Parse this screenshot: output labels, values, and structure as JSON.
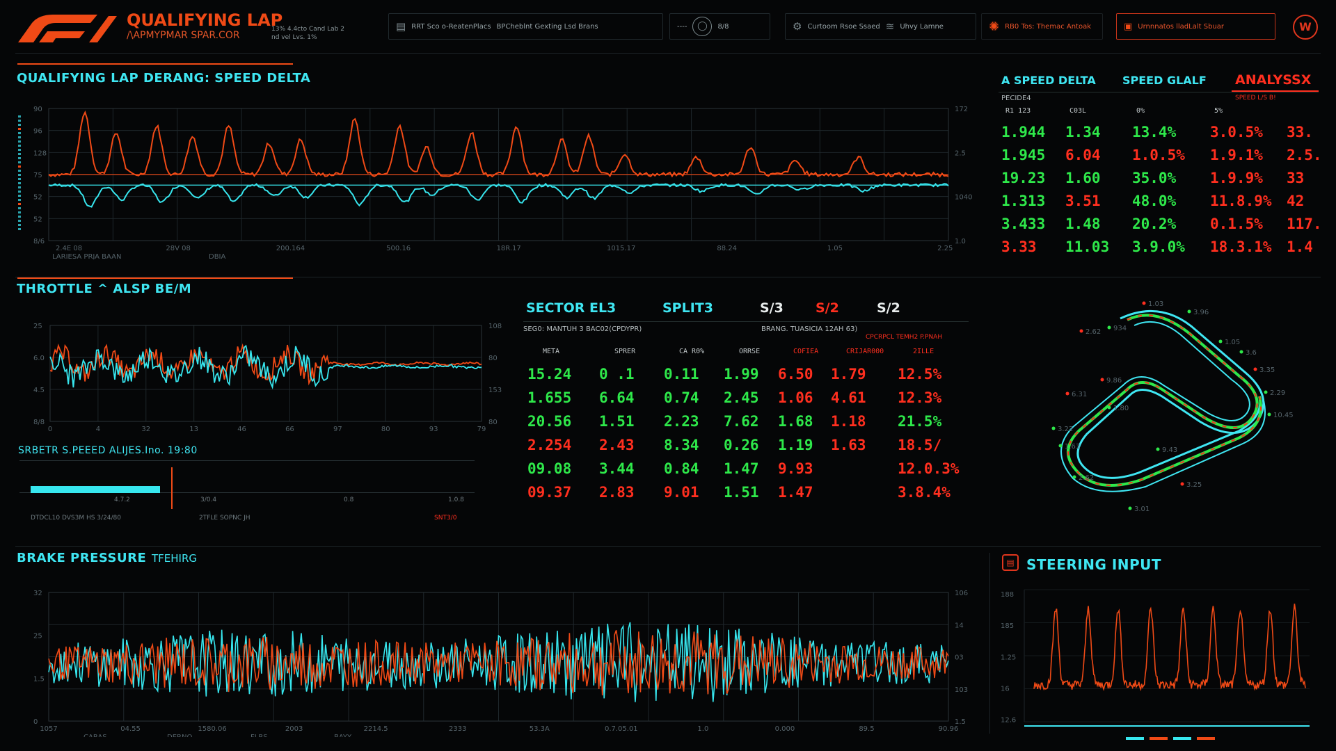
{
  "header": {
    "brand_title": "QUALIFYING LAP",
    "brand_subtitle": "/\\APMYPMAR SPAR.COR",
    "brand_small": "13% 4.4cto Cand Lab 2",
    "brand_small2": "nd vel Lvs. 1%",
    "boxes": [
      {
        "icon": "doc-icon",
        "label": "RRT Sco o-ReatenPlacs",
        "label2": "BPCheblnt Gexting Lsd Brans"
      },
      {
        "icon": "user-icon",
        "label": "----",
        "label2": "8/8"
      },
      {
        "icon": "gear-icon",
        "label": "Curtoom Rsoe Ssaed",
        "label2": "Uhvy Lamne"
      },
      {
        "icon": "alert-icon",
        "label": "RB0 Tos: Themac Antoak"
      },
      {
        "icon": "warning-icon",
        "label": "Urnnnatos lladLalt Sbuar"
      }
    ]
  },
  "speed_delta_panel": {
    "title": "QUALIFYING LAP DERANG: SPEED DELTA",
    "y_left": [
      "90",
      "96",
      "128",
      "75",
      "52",
      "52",
      "8/6"
    ],
    "y_right": [
      "172",
      "2.5",
      "1040",
      "1.0"
    ],
    "x_ticks": [
      "2.4E 08",
      "28V 08",
      "200.164",
      "500.16",
      "18R.17",
      "1015.17",
      "88.24",
      "1.05",
      "2.25"
    ],
    "footer_labels": [
      "LARIESA PRJA BAAN",
      "DBIA"
    ],
    "series": {
      "a": "orange",
      "b": "cyan"
    }
  },
  "analysis_table": {
    "headers": [
      "A SPEED DELTA",
      "SPEED GLALF",
      "ANALYSSX"
    ],
    "subheader": "PECIDE4",
    "subheader_right": "SPEED L/S B!",
    "colheads": [
      "R1 123",
      "C03L",
      "0%",
      "5%"
    ],
    "rows": [
      {
        "c": [
          "1.944",
          "1.34",
          "13.4%",
          "3.0.5%",
          "33."
        ],
        "k": [
          "g",
          "g",
          "g",
          "r",
          "r"
        ]
      },
      {
        "c": [
          "1.945",
          "6.04",
          "1.0.5%",
          "1.9.1%",
          "2.5."
        ],
        "k": [
          "g",
          "r",
          "r",
          "r",
          "r"
        ]
      },
      {
        "c": [
          "19.23",
          "1.60",
          "35.0%",
          "1.9.9%",
          "33"
        ],
        "k": [
          "g",
          "g",
          "g",
          "r",
          "r"
        ]
      },
      {
        "c": [
          "1.313",
          "3.51",
          "48.0%",
          "11.8.9%",
          "42"
        ],
        "k": [
          "g",
          "r",
          "g",
          "r",
          "r"
        ]
      },
      {
        "c": [
          "3.433",
          "1.48",
          "20.2%",
          "0.1.5%",
          "117."
        ],
        "k": [
          "g",
          "g",
          "g",
          "r",
          "r"
        ]
      },
      {
        "c": [
          "3.33",
          "11.03",
          "3.9.0%",
          "18.3.1%",
          "1.4"
        ],
        "k": [
          "r",
          "g",
          "g",
          "r",
          "r"
        ]
      }
    ]
  },
  "throttle_panel": {
    "title": "THROTTLE ^ ALSP BE/M",
    "y_left": [
      "25",
      "6.0",
      "4.5",
      "8/8"
    ],
    "y_right": [
      "108",
      "80",
      "153",
      "80"
    ],
    "x_ticks": [
      "0",
      "4",
      "32",
      "13",
      "46",
      "66",
      "97",
      "80",
      "93",
      "79"
    ]
  },
  "sector_speed": {
    "title": "SRBETR S.PEEED ALIJES.Ino. 19:80",
    "labels": [
      "4.7.2",
      "3/0.4",
      "0.8",
      "1.0.8"
    ],
    "footer": [
      "DTDCL10 DVS3M HS 3/24/80",
      "2TFLE SOPNC JH",
      "SNT3/0 "
    ],
    "bar_value": 0.3
  },
  "sector_table": {
    "headers": [
      "SECTOR EL3",
      "SPLIT3",
      "S/3",
      "S/2",
      "S/2"
    ],
    "header_kinds": [
      "c",
      "c",
      "w",
      "r",
      "w"
    ],
    "sub_left": "SEG0: MANTUH 3 BAC02(CPDYPR)",
    "sub_mid": "BRANG. TUASICIA 12AH 63)",
    "sub_right": "CPCRPCL TEMH2 P.PNAH",
    "colheads": [
      "META",
      "SPRER",
      "CA R0%",
      "ORRSE",
      "COFIEA",
      "CRIJAR000",
      "2ILLE"
    ],
    "rows": [
      {
        "c": [
          "15.24",
          "0 .1",
          "0.11",
          "1.99",
          "6.50",
          "1.79",
          "12.5%"
        ],
        "k": [
          "g",
          "g",
          "g",
          "g",
          "r",
          "r",
          "r"
        ]
      },
      {
        "c": [
          "1.655",
          "6.64",
          "0.74",
          "2.45",
          "1.06",
          "4.61",
          "12.3%"
        ],
        "k": [
          "g",
          "g",
          "g",
          "g",
          "r",
          "r",
          "r"
        ]
      },
      {
        "c": [
          "20.56",
          "1.51",
          "2.23",
          "7.62",
          "1.68",
          "1.18",
          "21.5%"
        ],
        "k": [
          "g",
          "g",
          "g",
          "g",
          "g",
          "r",
          "g"
        ]
      },
      {
        "c": [
          "2.254",
          "2.43",
          "8.34",
          "0.26",
          "1.19",
          "1.63",
          "18.5/"
        ],
        "k": [
          "r",
          "r",
          "g",
          "g",
          "g",
          "r",
          "r"
        ]
      },
      {
        "c": [
          "09.08",
          "3.44",
          "0.84",
          "1.47",
          "9.93",
          "",
          "12.0.3%"
        ],
        "k": [
          "g",
          "g",
          "g",
          "g",
          "r",
          "r",
          "r"
        ]
      },
      {
        "c": [
          "09.37",
          "2.83",
          "9.01",
          "1.51",
          "1.47",
          "",
          "3.8.4%"
        ],
        "k": [
          "r",
          "r",
          "r",
          "g",
          "r",
          "r",
          "r"
        ]
      }
    ]
  },
  "track_map": {
    "labels": [
      "1.03",
      "3.96",
      "934",
      "2.62",
      "1.05",
      "3.6",
      "3.35",
      "2.29",
      "10.45",
      "6.31",
      "3.22",
      "1.63",
      "9.86",
      "1.80",
      "9.43",
      "3.25",
      "2.62",
      "3.01"
    ]
  },
  "brake_panel": {
    "title": "BRAKE PRESSURE",
    "title_suffix": "TFEHIRG",
    "y_left": [
      "32",
      "25",
      "1.5",
      "0"
    ],
    "y_right": [
      "106",
      "14",
      "03",
      "103",
      "1.5"
    ],
    "x_ticks": [
      "1057",
      "04.55",
      "1580.06",
      "2003",
      "2214.5",
      "2333",
      "53.3A",
      "0.7.05.01",
      "1.0",
      "0.000",
      "89.5",
      "90.96"
    ],
    "footer_labels": [
      "CARAS",
      "DERNO",
      "FLRS",
      "BAYY"
    ]
  },
  "steering_panel": {
    "title": "STEERING INPUT",
    "y_left": [
      "188",
      "185",
      "1.25",
      "16",
      "12.6"
    ],
    "legend_colors": [
      "#37e6ee",
      "#f04a16",
      "#37e6ee",
      "#f04a16"
    ]
  },
  "colors": {
    "accent": "#f04a16",
    "cyan": "#3fe6f2",
    "green": "#2ee84a",
    "red": "#ff2f1f",
    "bg": "#050607"
  }
}
